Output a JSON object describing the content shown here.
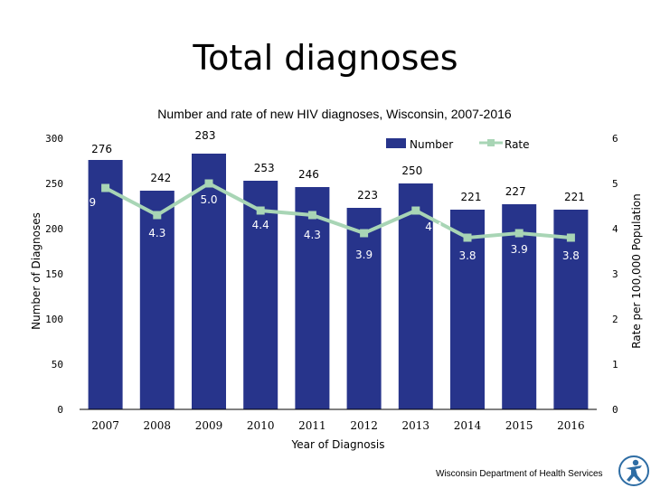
{
  "slide": {
    "title": "Total diagnoses",
    "footer": "Wisconsin Department of Health Services",
    "logo": "dhs-person-logo-icon"
  },
  "chart_data": {
    "type": "bar",
    "title": "Number and rate of new HIV diagnoses, Wisconsin, 2007-2016",
    "xlabel": "Year of Diagnosis",
    "ylabel": "Number of Diagnoses",
    "y2label": "Rate per 100,000 Population",
    "categories": [
      "2007",
      "2008",
      "2009",
      "2010",
      "2011",
      "2012",
      "2013",
      "2014",
      "2015",
      "2016"
    ],
    "ylim": [
      0,
      300
    ],
    "y2lim": [
      0,
      6
    ],
    "yticks": [
      0,
      50,
      100,
      150,
      200,
      250,
      300
    ],
    "y2ticks": [
      0,
      1,
      2,
      3,
      4,
      5,
      6
    ],
    "series": [
      {
        "name": "Number",
        "type": "bar",
        "axis": "left",
        "color": "#27348B",
        "values": [
          276,
          242,
          283,
          253,
          246,
          223,
          250,
          221,
          227,
          221
        ]
      },
      {
        "name": "Rate",
        "type": "line",
        "axis": "right",
        "color": "#A8D5B5",
        "values": [
          4.9,
          4.3,
          5.0,
          4.4,
          4.3,
          3.9,
          4.4,
          3.8,
          3.9,
          3.8
        ]
      }
    ],
    "legend": "top-right",
    "grid": false
  }
}
